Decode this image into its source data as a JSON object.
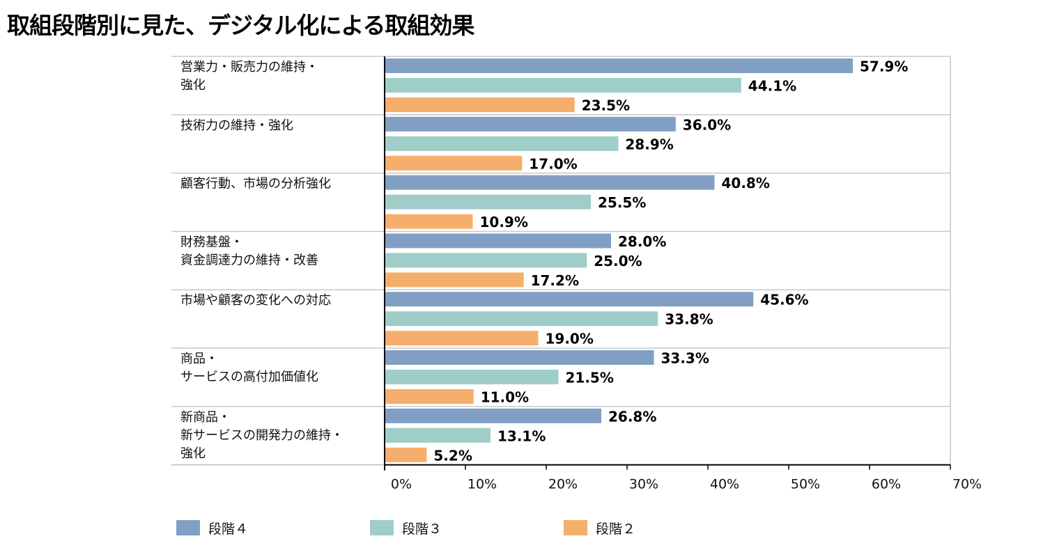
{
  "title": "取組段階別に見た、デジタル化による取組効果",
  "colors": {
    "series_1": "#819fc4",
    "series_2": "#9fcdc7",
    "series_3": "#f5ae6c",
    "grid": "#c9c9c9",
    "axis": "#000000"
  },
  "legend": [
    {
      "label": "段階４",
      "color": "#819fc4"
    },
    {
      "label": "段階３",
      "color": "#9fcdc7"
    },
    {
      "label": "段階２",
      "color": "#f5ae6c"
    }
  ],
  "chart_data": {
    "type": "bar",
    "orientation": "horizontal",
    "title": "取組段階別に見た、デジタル化による取組効果",
    "categories": [
      [
        "営業力・販売力の維持・",
        "強化"
      ],
      [
        "技術力の維持・強化"
      ],
      [
        "顧客行動、市場の分析強化"
      ],
      [
        "財務基盤・",
        "資金調達力の維持・改善"
      ],
      [
        "市場や顧客の変化への対応"
      ],
      [
        "商品・",
        "サービスの高付加価値化"
      ],
      [
        "新商品・",
        "新サービスの開発力の維持・",
        "強化"
      ]
    ],
    "series": [
      {
        "name": "段階４",
        "values": [
          57.9,
          36.0,
          40.8,
          28.0,
          45.6,
          33.3,
          26.8
        ]
      },
      {
        "name": "段階３",
        "values": [
          44.1,
          28.9,
          25.5,
          25.0,
          33.8,
          21.5,
          13.1
        ]
      },
      {
        "name": "段階２",
        "values": [
          23.5,
          17.0,
          10.9,
          17.2,
          19.0,
          11.0,
          5.2
        ]
      }
    ],
    "value_suffix": "%",
    "xlim": [
      0,
      70
    ],
    "xticks": [
      "0%",
      "10%",
      "20%",
      "30%",
      "40%",
      "50%",
      "60%",
      "70%"
    ],
    "legend_position": "bottom"
  }
}
